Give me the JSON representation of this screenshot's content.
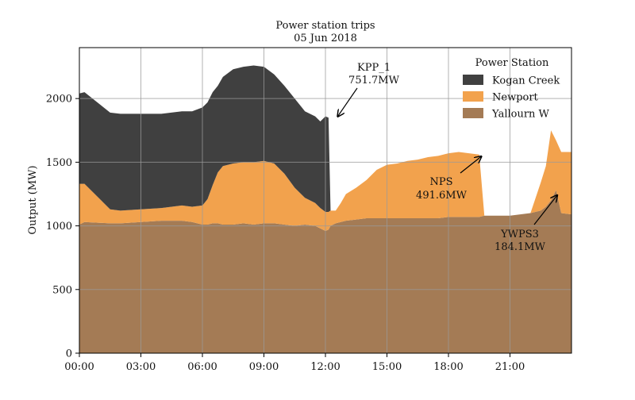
{
  "chart_data": {
    "type": "area",
    "stacked": true,
    "title": "Power station trips",
    "subtitle": "05 Jun 2018",
    "xlabel": "",
    "ylabel": "Output (MW)",
    "xlim": [
      0,
      24
    ],
    "ylim": [
      0,
      2400
    ],
    "x_ticks": [
      {
        "value": 0,
        "label": "00:00"
      },
      {
        "value": 3,
        "label": "03:00"
      },
      {
        "value": 6,
        "label": "06:00"
      },
      {
        "value": 9,
        "label": "09:00"
      },
      {
        "value": 12,
        "label": "12:00"
      },
      {
        "value": 15,
        "label": "15:00"
      },
      {
        "value": 18,
        "label": "18:00"
      },
      {
        "value": 21,
        "label": "21:00"
      }
    ],
    "y_ticks": [
      0,
      500,
      1000,
      1500,
      2000
    ],
    "grid": true,
    "legend": {
      "title": "Power Station",
      "placement": "top-right",
      "entries": [
        "Kogan Creek",
        "Newport",
        "Yallourn W"
      ]
    },
    "x_hours": [
      0,
      0.25,
      1.5,
      2,
      3,
      4,
      5,
      5.5,
      6,
      6.25,
      6.5,
      6.75,
      7,
      7.5,
      8,
      8.5,
      9,
      9.5,
      10,
      10.5,
      11,
      11.5,
      11.75,
      12,
      12.15,
      12.25,
      12.5,
      12.75,
      13,
      13.5,
      14,
      14.5,
      15,
      15.5,
      16,
      16.5,
      17,
      17.5,
      18,
      18.5,
      19,
      19.5,
      19.75,
      20,
      20.5,
      21,
      21.5,
      22,
      22.5,
      22.75,
      23,
      23.25,
      23.5,
      24
    ],
    "series": [
      {
        "name": "Yallourn W",
        "color": "#a47b55",
        "values": [
          1010,
          1030,
          1020,
          1020,
          1030,
          1040,
          1040,
          1030,
          1010,
          1010,
          1020,
          1020,
          1010,
          1010,
          1020,
          1010,
          1020,
          1020,
          1010,
          1000,
          1010,
          1000,
          980,
          960,
          970,
          1000,
          1020,
          1030,
          1040,
          1050,
          1060,
          1060,
          1060,
          1060,
          1060,
          1060,
          1060,
          1060,
          1070,
          1070,
          1070,
          1070,
          1080,
          1080,
          1080,
          1080,
          1090,
          1100,
          1120,
          1150,
          1200,
          1280,
          1100,
          1090
        ]
      },
      {
        "name": "Newport",
        "color": "#f2a24d",
        "values": [
          320,
          300,
          110,
          100,
          100,
          100,
          120,
          120,
          150,
          200,
          300,
          400,
          460,
          480,
          480,
          490,
          490,
          470,
          400,
          300,
          210,
          180,
          160,
          150,
          140,
          120,
          100,
          150,
          210,
          250,
          300,
          380,
          420,
          430,
          450,
          460,
          480,
          490,
          500,
          510,
          500,
          490,
          0,
          0,
          0,
          0,
          0,
          0,
          220,
          320,
          550,
          390,
          480,
          490
        ]
      },
      {
        "name": "Kogan Creek",
        "color": "#404040",
        "values": [
          710,
          720,
          760,
          760,
          750,
          740,
          740,
          750,
          770,
          760,
          730,
          680,
          700,
          740,
          750,
          760,
          740,
          700,
          690,
          700,
          680,
          680,
          680,
          750,
          740,
          0,
          0,
          0,
          0,
          0,
          0,
          0,
          0,
          0,
          0,
          0,
          0,
          0,
          0,
          0,
          0,
          0,
          0,
          0,
          0,
          0,
          0,
          0,
          0,
          0,
          0,
          0,
          0,
          0
        ]
      }
    ],
    "annotations": [
      {
        "line1": "KPP_1",
        "line2": "751.7MW",
        "x": 12.6,
        "y": 1860
      },
      {
        "line1": "NPS",
        "line2": "491.6MW",
        "x": 19.6,
        "y": 1545
      },
      {
        "line1": "YWPS3",
        "line2": "184.1MW",
        "x": 23.3,
        "y": 1240
      }
    ]
  }
}
